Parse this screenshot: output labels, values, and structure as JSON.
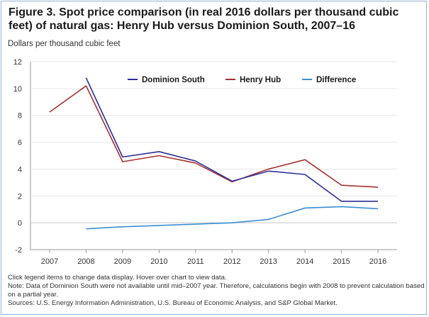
{
  "chart_data": {
    "type": "line",
    "title": "Figure 3. Spot price comparison (in real 2016 dollars per thousand cubic feet) of natural gas: Henry Hub versus Dominion South, 2007–16",
    "ylabel": "Dollars per thousand cubic feet",
    "xlabel": "",
    "x": [
      2007,
      2008,
      2009,
      2010,
      2011,
      2012,
      2013,
      2014,
      2015,
      2016
    ],
    "ylim": [
      -2,
      12
    ],
    "yticks": [
      -2,
      0,
      2,
      4,
      6,
      8,
      10,
      12
    ],
    "grid": "horizontal",
    "legend_position": "top-right",
    "series": [
      {
        "name": "Dominion South",
        "color": "#2e2e9a",
        "values": [
          null,
          10.8,
          4.9,
          5.3,
          4.6,
          3.1,
          3.85,
          3.6,
          1.6,
          1.6
        ]
      },
      {
        "name": "Henry Hub",
        "color": "#a83232",
        "values": [
          8.25,
          10.2,
          4.55,
          5.0,
          4.45,
          3.05,
          4.0,
          4.7,
          2.8,
          2.65
        ]
      },
      {
        "name": "Difference",
        "color": "#3a8fd1",
        "values": [
          null,
          -0.45,
          -0.3,
          -0.2,
          -0.1,
          0.0,
          0.25,
          1.1,
          1.2,
          1.05
        ]
      }
    ]
  },
  "notes": {
    "line1": "Click legend items to change data display. Hover over chart to view data.",
    "line2": "Note: Data of Dominion South were not available until mid–2007 year. Therefore, calculations begin with 2008 to prevent calculation based on a partial year.",
    "line3": "Sources: U.S. Energy Information Administration, U.S. Bureau of Economic Analysis, and S&P Global Market."
  }
}
